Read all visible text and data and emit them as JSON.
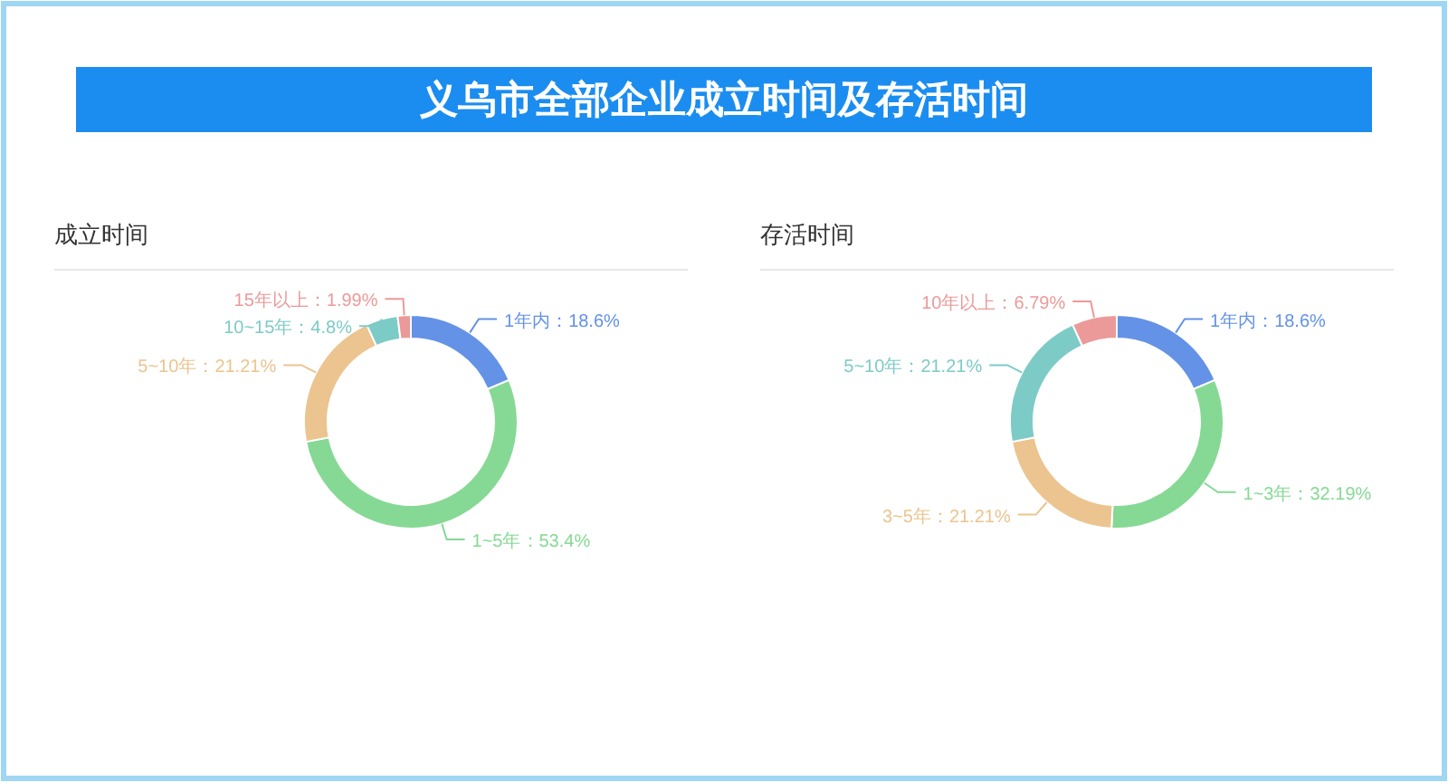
{
  "chart_data": [
    {
      "type": "other",
      "title": "义乌市全部企业成立时间及存活时间"
    },
    {
      "type": "donut",
      "title": "成立时间",
      "categories": [
        "1年内",
        "1~5年",
        "5~10年",
        "10~15年",
        "15年以上"
      ],
      "values": [
        18.6,
        53.4,
        21.21,
        4.8,
        1.99
      ],
      "colors": [
        "#6492e6",
        "#86d994",
        "#ebc48f",
        "#7dcbc6",
        "#eb9a99"
      ],
      "value_labels": [
        "：18.6%",
        "：53.4%",
        "：21.21%",
        "：4.8%",
        "：1.99%"
      ]
    },
    {
      "type": "donut",
      "title": "存活时间",
      "categories": [
        "1年内",
        "1~3年",
        "3~5年",
        "5~10年",
        "10年以上"
      ],
      "values": [
        18.6,
        32.19,
        21.21,
        21.21,
        6.79
      ],
      "colors": [
        "#6492e6",
        "#86d994",
        "#ebc48f",
        "#7dcbc6",
        "#eb9a99"
      ],
      "value_labels": [
        "：18.6%",
        "：32.19%",
        "：21.21%",
        "：21.21%",
        "：6.79%"
      ]
    }
  ]
}
